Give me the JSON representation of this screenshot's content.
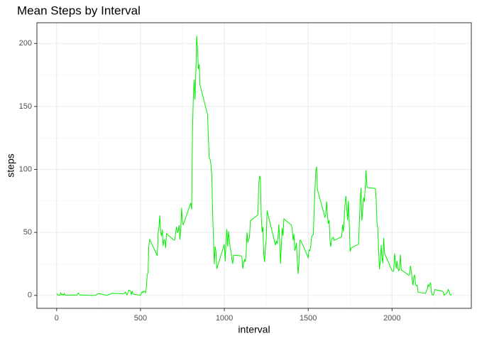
{
  "chart_data": {
    "type": "line",
    "title": "Mean Steps by Interval",
    "x_label": "interval",
    "y_label": "steps",
    "x": [
      0,
      5,
      10,
      15,
      20,
      25,
      30,
      35,
      40,
      45,
      50,
      55,
      100,
      110,
      120,
      130,
      140,
      150,
      200,
      230,
      250,
      300,
      330,
      400,
      410,
      420,
      430,
      440,
      445,
      450,
      455,
      500,
      510,
      515,
      520,
      525,
      530,
      535,
      540,
      545,
      550,
      555,
      600,
      605,
      610,
      615,
      620,
      625,
      630,
      635,
      640,
      645,
      650,
      655,
      700,
      705,
      710,
      715,
      720,
      725,
      730,
      735,
      740,
      745,
      750,
      755,
      800,
      805,
      810,
      815,
      820,
      825,
      830,
      835,
      840,
      845,
      850,
      855,
      900,
      905,
      910,
      915,
      920,
      925,
      930,
      935,
      940,
      945,
      950,
      955,
      1000,
      1005,
      1010,
      1015,
      1020,
      1025,
      1030,
      1035,
      1040,
      1045,
      1050,
      1055,
      1100,
      1105,
      1110,
      1115,
      1120,
      1125,
      1130,
      1135,
      1140,
      1145,
      1150,
      1155,
      1200,
      1205,
      1210,
      1215,
      1220,
      1225,
      1230,
      1235,
      1240,
      1245,
      1250,
      1255,
      1300,
      1305,
      1310,
      1315,
      1320,
      1325,
      1330,
      1335,
      1340,
      1345,
      1350,
      1355,
      1400,
      1405,
      1410,
      1415,
      1420,
      1425,
      1430,
      1435,
      1440,
      1445,
      1450,
      1455,
      1500,
      1505,
      1510,
      1515,
      1520,
      1525,
      1530,
      1535,
      1540,
      1545,
      1550,
      1555,
      1600,
      1605,
      1610,
      1615,
      1620,
      1625,
      1630,
      1635,
      1640,
      1645,
      1650,
      1655,
      1700,
      1705,
      1710,
      1715,
      1720,
      1725,
      1730,
      1735,
      1740,
      1745,
      1750,
      1755,
      1800,
      1805,
      1810,
      1815,
      1820,
      1825,
      1830,
      1835,
      1840,
      1845,
      1850,
      1855,
      1900,
      1905,
      1910,
      1915,
      1920,
      1925,
      1930,
      1935,
      1940,
      1945,
      1950,
      1955,
      2000,
      2005,
      2010,
      2015,
      2020,
      2025,
      2030,
      2035,
      2040,
      2045,
      2050,
      2055,
      2100,
      2105,
      2110,
      2115,
      2120,
      2125,
      2130,
      2135,
      2140,
      2145,
      2150,
      2155,
      2200,
      2205,
      2210,
      2215,
      2220,
      2225,
      2230,
      2235,
      2240,
      2245,
      2250,
      2255,
      2300,
      2305,
      2310,
      2315,
      2320,
      2325,
      2330,
      2335,
      2340,
      2345,
      2350,
      2355
    ],
    "series": [
      {
        "name": "steps",
        "color": "#00ee00",
        "values": [
          1.7,
          0.3,
          0.1,
          0.2,
          0.1,
          2.1,
          0.5,
          0.9,
          0,
          1.5,
          0.3,
          0.1,
          0.3,
          0.2,
          0,
          1.8,
          0.2,
          0.3,
          0,
          0,
          1.5,
          0,
          1.6,
          1.2,
          2.6,
          0.3,
          4.1,
          3.5,
          0.8,
          3.1,
          1.1,
          0,
          3,
          2.2,
          3.3,
          3,
          2.1,
          6.1,
          16,
          18.3,
          39.5,
          44.5,
          31.5,
          49.3,
          53.8,
          63.5,
          50,
          47.1,
          52.2,
          39.3,
          44,
          44.2,
          37.4,
          49,
          43.8,
          44.4,
          50.5,
          54.5,
          49.9,
          51,
          55.7,
          44.3,
          52.3,
          69.5,
          57.8,
          56.2,
          73.4,
          68.2,
          129.4,
          157.5,
          171.2,
          155.4,
          177.3,
          206.2,
          195.9,
          179.6,
          183.4,
          167,
          143.5,
          124,
          109.1,
          108.1,
          103.7,
          96,
          66.2,
          45.2,
          24.8,
          38.8,
          35,
          21.1,
          40.6,
          27,
          42.4,
          52.7,
          38.9,
          50.8,
          44.3,
          37.4,
          34.7,
          28.3,
          25.1,
          31.9,
          31.4,
          29.7,
          21.3,
          25.5,
          28.4,
          26.5,
          33.4,
          50,
          42,
          44.6,
          46,
          59.2,
          63.9,
          87.7,
          94.8,
          92.8,
          63.4,
          50.2,
          54.5,
          32.4,
          26.5,
          37.7,
          45.1,
          67.3,
          42.3,
          39.9,
          43.3,
          41,
          46.2,
          56.4,
          42.8,
          25.1,
          40,
          53.5,
          47.4,
          60.8,
          55.8,
          52,
          43.6,
          48.7,
          35.5,
          37.5,
          41.8,
          27.5,
          17.1,
          26.1,
          43.6,
          43.8,
          30,
          36.1,
          35.5,
          38.8,
          46,
          47.8,
          48.1,
          65.3,
          82.9,
          98.7,
          102.1,
          84,
          62.1,
          64.1,
          74.5,
          63.2,
          56.9,
          59.8,
          43.9,
          38.6,
          44.7,
          45.5,
          46.2,
          43.7,
          46.6,
          56.3,
          50.7,
          61.2,
          72.7,
          78.9,
          68.9,
          59.7,
          75.1,
          56.5,
          34.8,
          37.5,
          40.7,
          58,
          74.7,
          85.3,
          59.3,
          67.8,
          77.7,
          74.3,
          85.3,
          99.5,
          86.6,
          85.6,
          84.9,
          77.8,
          58,
          53.4,
          36.3,
          20.7,
          27.4,
          40,
          30.2,
          25.5,
          45.7,
          33.5,
          19.6,
          19,
          19.3,
          33.3,
          26.8,
          21.2,
          27.3,
          21.3,
          19.5,
          21.3,
          32.3,
          20.2,
          15.9,
          17.2,
          23.5,
          19.2,
          12.5,
          8,
          14.7,
          16.3,
          8.7,
          7.8,
          8.1,
          2.6,
          1.5,
          3.7,
          4.8,
          8.5,
          7.1,
          8.7,
          9.8,
          2.2,
          0.3,
          0.1,
          1.6,
          4.6,
          3.3,
          2.8,
          0,
          0.8,
          1,
          1.6,
          2.6,
          4.7,
          3.3,
          0.6,
          0.2,
          1.1
        ]
      }
    ],
    "xlim": [
      -117.75,
      2472.75
    ],
    "ylim": [
      -10.3,
      216.5
    ],
    "xticks": [
      0,
      500,
      1000,
      1500,
      2000
    ],
    "yticks": [
      0,
      50,
      100,
      150,
      200
    ],
    "minor_xticks": [
      250,
      750,
      1250,
      1750,
      2250
    ],
    "minor_yticks": [
      25,
      75,
      125,
      175
    ],
    "grid": true
  }
}
